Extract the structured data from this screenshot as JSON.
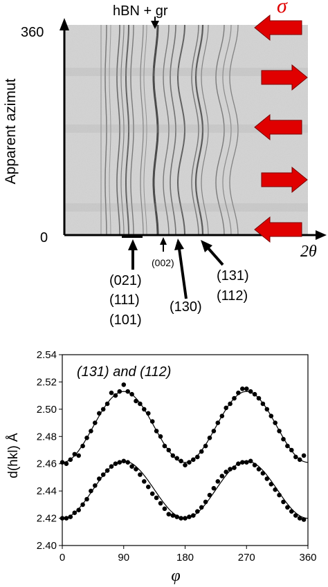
{
  "colors": {
    "arrow_red": "#e00000",
    "sigma_red": "#e00000",
    "text": "#000000",
    "fit_line": "#000000",
    "points": "#000000",
    "image_bg": "#d3d3d3",
    "ring_dark": "#2a2a2a"
  },
  "top_panel": {
    "title": "hBN + gr",
    "sigma_label": "σ",
    "y_axis_label": "Apparent azimut",
    "x_axis_label": "2θ",
    "y_ticks": [
      "0",
      "360"
    ],
    "peak_labels": {
      "p021": [
        "(021)",
        "(111)",
        "(101)"
      ],
      "p002": "(002)",
      "p130": "(130)",
      "p131": [
        "(131)",
        "(112)"
      ]
    },
    "stress_arrow_directions": [
      "left",
      "right",
      "left",
      "right",
      "left"
    ]
  },
  "chart_data": [
    {
      "type": "scatter",
      "title": "(131) and (112)",
      "xlabel": "φ",
      "ylabel": "d(hkl) Å",
      "xlim": [
        0,
        360
      ],
      "ylim": [
        2.4,
        2.54
      ],
      "x_ticks": [
        "0",
        "90",
        "180",
        "270",
        "360"
      ],
      "y_ticks": [
        "2.40",
        "2.42",
        "2.44",
        "2.46",
        "2.48",
        "2.50",
        "2.52",
        "2.54"
      ],
      "grid": false,
      "series": [
        {
          "points_x": [
            0,
            6,
            12,
            18,
            24,
            30,
            36,
            42,
            48,
            54,
            60,
            66,
            72,
            78,
            84,
            90,
            96,
            102,
            108,
            114,
            120,
            126,
            132,
            138,
            144,
            150,
            156,
            162,
            168,
            174,
            180,
            186,
            192,
            198,
            204,
            210,
            216,
            222,
            228,
            234,
            240,
            246,
            252,
            258,
            264,
            270,
            276,
            282,
            288,
            294,
            300,
            306,
            312,
            318,
            324,
            330,
            336,
            342,
            348,
            354
          ],
          "points_y": [
            2.461,
            2.46,
            2.463,
            2.467,
            2.466,
            2.473,
            2.479,
            2.484,
            2.49,
            2.497,
            2.5,
            2.504,
            2.512,
            2.51,
            2.513,
            2.518,
            2.513,
            2.511,
            2.506,
            2.504,
            2.5,
            2.497,
            2.491,
            2.484,
            2.48,
            2.473,
            2.47,
            2.466,
            2.464,
            2.462,
            2.459,
            2.461,
            2.463,
            2.465,
            2.469,
            2.473,
            2.479,
            2.484,
            2.49,
            2.495,
            2.501,
            2.504,
            2.508,
            2.512,
            2.515,
            2.515,
            2.513,
            2.511,
            2.508,
            2.504,
            2.5,
            2.495,
            2.49,
            2.484,
            2.478,
            2.473,
            2.47,
            2.465,
            2.463,
            2.466
          ],
          "fit": {
            "center": 2.487,
            "amplitude": 0.026,
            "phase_deg": 90,
            "period_deg": 180
          }
        },
        {
          "points_x": [
            0,
            6,
            12,
            18,
            24,
            30,
            36,
            42,
            48,
            54,
            60,
            66,
            72,
            78,
            84,
            90,
            96,
            102,
            108,
            114,
            120,
            126,
            132,
            138,
            144,
            150,
            156,
            162,
            168,
            174,
            180,
            186,
            192,
            198,
            204,
            210,
            216,
            222,
            228,
            234,
            240,
            246,
            252,
            258,
            264,
            270,
            276,
            282,
            288,
            294,
            300,
            306,
            312,
            318,
            324,
            330,
            336,
            342,
            348,
            354
          ],
          "points_y": [
            2.42,
            2.42,
            2.421,
            2.424,
            2.426,
            2.43,
            2.434,
            2.44,
            2.444,
            2.449,
            2.452,
            2.455,
            2.458,
            2.46,
            2.461,
            2.462,
            2.461,
            2.458,
            2.456,
            2.452,
            2.447,
            2.443,
            2.438,
            2.435,
            2.431,
            2.427,
            2.423,
            2.422,
            2.421,
            2.42,
            2.42,
            2.421,
            2.422,
            2.425,
            2.428,
            2.432,
            2.437,
            2.442,
            2.447,
            2.451,
            2.454,
            2.456,
            2.457,
            2.46,
            2.461,
            2.461,
            2.462,
            2.459,
            2.456,
            2.453,
            2.449,
            2.445,
            2.441,
            2.437,
            2.432,
            2.428,
            2.425,
            2.422,
            2.42,
            2.419
          ],
          "fit": {
            "center": 2.441,
            "amplitude": 0.021,
            "phase_deg": 90,
            "period_deg": 180
          }
        }
      ]
    }
  ]
}
